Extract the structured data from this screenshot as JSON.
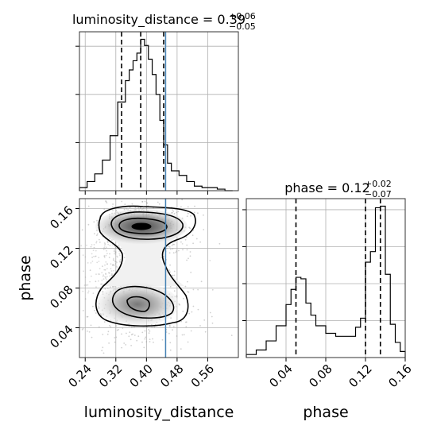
{
  "chart_data": {
    "type": "corner",
    "parameters": [
      "luminosity_distance",
      "phase"
    ],
    "truth": {
      "luminosity_distance": 0.45,
      "truth_color": "#4682b4"
    },
    "grid": true,
    "panels": {
      "luminosity_distance_hist": {
        "title": {
          "name": "luminosity_distance",
          "median": "0.39",
          "plus": "+0.06",
          "minus": "−0.05"
        },
        "xlim": [
          0.225,
          0.64
        ],
        "quantile_lines": [
          0.335,
          0.385,
          0.445
        ],
        "bin_edges": [
          0.225,
          0.245,
          0.265,
          0.285,
          0.305,
          0.325,
          0.345,
          0.355,
          0.365,
          0.375,
          0.385,
          0.395,
          0.405,
          0.415,
          0.425,
          0.435,
          0.445,
          0.455,
          0.465,
          0.485,
          0.505,
          0.525,
          0.545,
          0.565,
          0.585,
          0.605,
          0.625
        ],
        "counts": [
          0.02,
          0.06,
          0.11,
          0.2,
          0.36,
          0.58,
          0.72,
          0.79,
          0.85,
          0.9,
          0.99,
          0.95,
          0.86,
          0.76,
          0.63,
          0.46,
          0.3,
          0.18,
          0.13,
          0.1,
          0.06,
          0.03,
          0.02,
          0.02,
          0.01,
          0.0
        ],
        "y_ticks_drawn": 3
      },
      "phase_hist": {
        "title": {
          "name": "phase",
          "median": "0.12",
          "plus": "+0.02",
          "minus": "−0.07"
        },
        "xlim": [
          0.0,
          0.16
        ],
        "quantile_lines": [
          0.05,
          0.12,
          0.135
        ],
        "bin_edges": [
          0.0,
          0.01,
          0.02,
          0.03,
          0.04,
          0.045,
          0.05,
          0.055,
          0.06,
          0.065,
          0.07,
          0.08,
          0.09,
          0.1,
          0.11,
          0.115,
          0.12,
          0.125,
          0.13,
          0.135,
          0.14,
          0.145,
          0.15,
          0.155,
          0.16
        ],
        "counts": [
          0.02,
          0.05,
          0.11,
          0.21,
          0.35,
          0.45,
          0.53,
          0.52,
          0.36,
          0.28,
          0.21,
          0.16,
          0.14,
          0.14,
          0.2,
          0.26,
          0.63,
          0.7,
          0.99,
          1.0,
          0.55,
          0.22,
          0.1,
          0.04
        ],
        "y_ticks_drawn": 4
      },
      "joint_2d": {
        "xlim": [
          0.225,
          0.64
        ],
        "ylim": [
          0.01,
          0.17
        ],
        "modes": [
          {
            "x": 0.39,
            "y": 0.133,
            "weight": "high"
          },
          {
            "x": 0.38,
            "y": 0.055,
            "weight": "medium"
          }
        ]
      }
    },
    "axes": {
      "x_label_left": "luminosity_distance",
      "x_label_right": "phase",
      "y_label": "phase",
      "x_ticks_lumdist": [
        "0.24",
        "0.32",
        "0.40",
        "0.48",
        "0.56"
      ],
      "x_ticks_lumdist_values": [
        0.24,
        0.32,
        0.4,
        0.48,
        0.56
      ],
      "y_ticks_phase": [
        "0.16",
        "0.12",
        "0.08",
        "0.04"
      ],
      "y_ticks_phase_values": [
        0.16,
        0.12,
        0.08,
        0.04
      ],
      "x_ticks_phase": [
        "0.04",
        "0.08",
        "0.12",
        "0.16"
      ],
      "x_ticks_phase_values": [
        0.04,
        0.08,
        0.12,
        0.16
      ]
    }
  }
}
